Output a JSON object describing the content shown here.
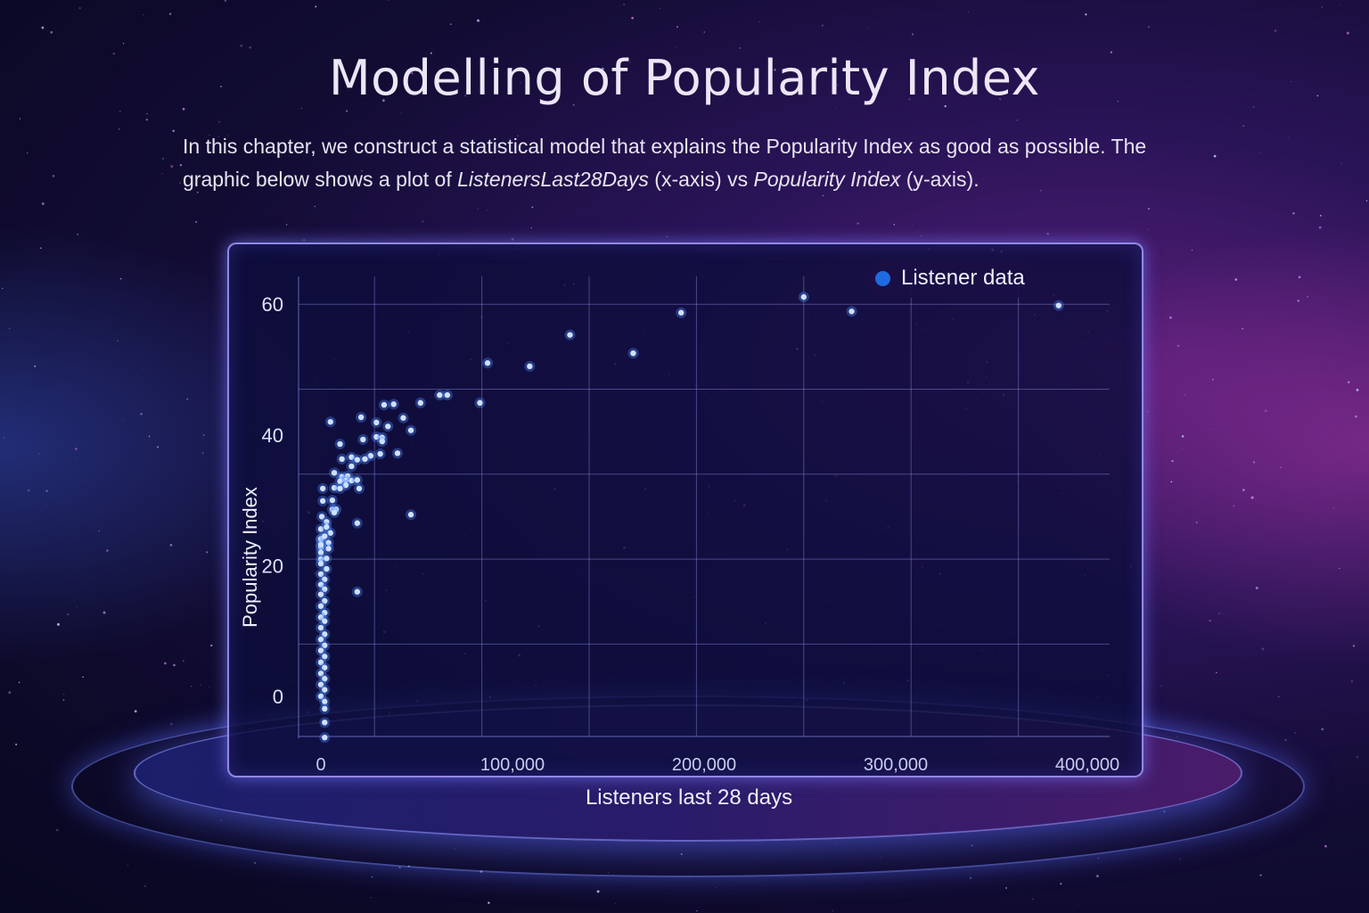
{
  "title": "Modelling of Popularity Index",
  "intro": {
    "text_1": "In this chapter, we construct a statistical model that explains the Popularity Index as good as possible. The graphic below shows a plot of ",
    "em_1": "ListenersLast28Days",
    "text_2": " (x-axis) vs ",
    "em_2": "Popularity Index",
    "text_3": " (y-axis)."
  },
  "colors": {
    "point": "#4d8dff",
    "legend_marker": "#1e6be0",
    "accent": "#8f7dff"
  },
  "chart_data": {
    "type": "scatter",
    "title": "",
    "xlabel": "Listeners last 28 days",
    "ylabel": "Popularity Index",
    "xlim": [
      -15000,
      415000
    ],
    "ylim": [
      -7,
      65
    ],
    "xticks": [
      0,
      100000,
      200000,
      300000,
      400000
    ],
    "xtick_labels": [
      "0",
      "100,000",
      "200,000",
      "300,000",
      "400,000"
    ],
    "yticks": [
      0,
      20,
      40,
      60
    ],
    "ytick_labels": [
      "0",
      "20",
      "40",
      "60"
    ],
    "grid": true,
    "legend_position": "top-right",
    "series": [
      {
        "name": "Listener data",
        "points": [
          [
            62000,
            46.1
          ],
          [
            66000,
            46.1
          ],
          [
            33000,
            44.6
          ],
          [
            38000,
            44.7
          ],
          [
            52000,
            44.9
          ],
          [
            83000,
            44.9
          ],
          [
            5000,
            42
          ],
          [
            21000,
            42.7
          ],
          [
            29000,
            41.9
          ],
          [
            35000,
            41.3
          ],
          [
            43000,
            42.6
          ],
          [
            47000,
            40.7
          ],
          [
            10000,
            38.6
          ],
          [
            22000,
            39.3
          ],
          [
            29000,
            39.7
          ],
          [
            32000,
            39.6
          ],
          [
            32000,
            39
          ],
          [
            26000,
            36.8
          ],
          [
            31000,
            37.1
          ],
          [
            40000,
            37.2
          ],
          [
            11000,
            36.3
          ],
          [
            16000,
            36.6
          ],
          [
            19000,
            36.2
          ],
          [
            23000,
            36.3
          ],
          [
            16000,
            35.2
          ],
          [
            7000,
            34.2
          ],
          [
            11000,
            33.6
          ],
          [
            14000,
            33.7
          ],
          [
            13000,
            33
          ],
          [
            16000,
            33
          ],
          [
            19000,
            33.1
          ],
          [
            10000,
            32.9
          ],
          [
            13000,
            32.3
          ],
          [
            7000,
            31.9
          ],
          [
            10000,
            31.8
          ],
          [
            20000,
            31.8
          ],
          [
            1000,
            31.8
          ],
          [
            1000,
            29.9
          ],
          [
            6000,
            30
          ],
          [
            6000,
            28.6
          ],
          [
            8000,
            28.6
          ],
          [
            7000,
            28.1
          ],
          [
            47000,
            27.8
          ],
          [
            500,
            27.5
          ],
          [
            3000,
            26.7
          ],
          [
            19000,
            26.5
          ],
          [
            0,
            25.6
          ],
          [
            3000,
            25.9
          ],
          [
            5000,
            25
          ],
          [
            0,
            24
          ],
          [
            0,
            24.1
          ],
          [
            2000,
            24.5
          ],
          [
            4000,
            23.5
          ],
          [
            0,
            22.8
          ],
          [
            0,
            23.2
          ],
          [
            4000,
            22.6
          ],
          [
            0,
            22
          ],
          [
            0,
            21
          ],
          [
            3000,
            21.1
          ],
          [
            0,
            20.3
          ],
          [
            3000,
            19.5
          ],
          [
            0,
            18.7
          ],
          [
            2000,
            17.9
          ],
          [
            19000,
            16
          ],
          [
            0,
            17.1
          ],
          [
            2000,
            16.4
          ],
          [
            0,
            15.6
          ],
          [
            2000,
            14.6
          ],
          [
            0,
            13.8
          ],
          [
            2000,
            12.8
          ],
          [
            0,
            12.1
          ],
          [
            2000,
            11.5
          ],
          [
            0,
            10.5
          ],
          [
            2000,
            9.5
          ],
          [
            0,
            8.7
          ],
          [
            2000,
            7.8
          ],
          [
            0,
            7.0
          ],
          [
            2000,
            6.1
          ],
          [
            0,
            5.2
          ],
          [
            2000,
            4.4
          ],
          [
            0,
            3.5
          ],
          [
            2000,
            2.7
          ],
          [
            0,
            1.8
          ],
          [
            2000,
            1.0
          ],
          [
            0,
            0
          ],
          [
            2000,
            -0.8
          ],
          [
            2000,
            -1.9
          ],
          [
            2000,
            -4
          ],
          [
            2000,
            -6.3
          ],
          [
            87000,
            51
          ],
          [
            109000,
            50.5
          ],
          [
            130000,
            55.3
          ],
          [
            163000,
            52.5
          ],
          [
            188000,
            58.7
          ],
          [
            252000,
            61.1
          ],
          [
            277000,
            58.9
          ],
          [
            385000,
            59.8
          ]
        ]
      }
    ]
  }
}
